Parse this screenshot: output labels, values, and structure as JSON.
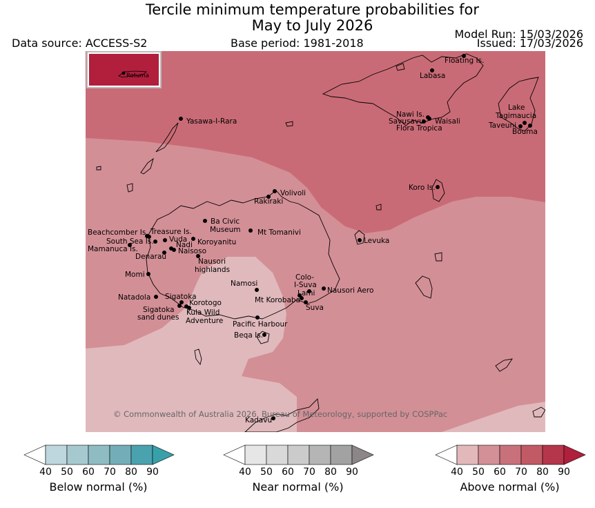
{
  "title_line1": "Tercile minimum temperature probabilities for",
  "title_line2": "May to July 2026",
  "data_source": "Data source: ACCESS-S2",
  "base_period": "Base period: 1981-2018",
  "model_run": "Model Run: 15/03/2026",
  "issued": "Issued: 17/03/2026",
  "inset_label": "Rotuma",
  "copyright": "© Commonwealth of Australia 2026, Bureau of Meteorology, supported by COSPPac",
  "places": [
    {
      "name": "Floating Is.",
      "lines": [
        "Floating Is."
      ]
    },
    {
      "name": "Labasa",
      "lines": [
        "Labasa"
      ]
    },
    {
      "name": "Yasawa-I-Rara",
      "lines": [
        "Yasawa-I-Rara"
      ]
    },
    {
      "name": "Nawi Is.",
      "lines": [
        "Nawi Is."
      ]
    },
    {
      "name": "Savusavu",
      "lines": [
        "Savusavu"
      ]
    },
    {
      "name": "Waisali",
      "lines": [
        "Waisali"
      ]
    },
    {
      "name": "Flora Tropica",
      "lines": [
        "Flora Tropica"
      ]
    },
    {
      "name": "Lake Tagimaucia",
      "lines": [
        "Lake",
        "Tagimaucia"
      ]
    },
    {
      "name": "Taveuni",
      "lines": [
        "Taveuni"
      ]
    },
    {
      "name": "Bouma",
      "lines": [
        "Bouma"
      ]
    },
    {
      "name": "Koro Is.",
      "lines": [
        "Koro Is."
      ]
    },
    {
      "name": "Volivoli",
      "lines": [
        "Volivoli"
      ]
    },
    {
      "name": "Rakiraki",
      "lines": [
        "Rakiraki"
      ]
    },
    {
      "name": "Ba Civic Museum",
      "lines": [
        "Ba Civic",
        "Museum"
      ]
    },
    {
      "name": "Mt Tomanivi",
      "lines": [
        "Mt Tomanivi"
      ]
    },
    {
      "name": "Levuka",
      "lines": [
        "Levuka"
      ]
    },
    {
      "name": "Beachcomber Is.",
      "lines": [
        "Beachcomber Is."
      ]
    },
    {
      "name": "Treasure Is.",
      "lines": [
        "Treasure Is."
      ]
    },
    {
      "name": "South Sea Is.",
      "lines": [
        "South Sea Is."
      ]
    },
    {
      "name": "Vuda",
      "lines": [
        "Vuda"
      ]
    },
    {
      "name": "Koroyanitu",
      "lines": [
        "Koroyanitu"
      ]
    },
    {
      "name": "Mamanuca Is.",
      "lines": [
        "Mamanuca Is."
      ]
    },
    {
      "name": "Nadi",
      "lines": [
        "Nadi"
      ]
    },
    {
      "name": "Naisoso",
      "lines": [
        "Naisoso"
      ]
    },
    {
      "name": "Denarau",
      "lines": [
        "Denarau"
      ]
    },
    {
      "name": "Nausori highlands",
      "lines": [
        "Nausori",
        "highlands"
      ]
    },
    {
      "name": "Momi",
      "lines": [
        "Momi"
      ]
    },
    {
      "name": "Namosi",
      "lines": [
        "Namosi"
      ]
    },
    {
      "name": "Colo-I-Suva",
      "lines": [
        "Colo-",
        "I-Suva"
      ]
    },
    {
      "name": "Nausori Aero",
      "lines": [
        "Nausori Aero"
      ]
    },
    {
      "name": "Lami",
      "lines": [
        "Lami"
      ]
    },
    {
      "name": "Mt Korobaba",
      "lines": [
        "Mt Korobaba"
      ]
    },
    {
      "name": "Suva",
      "lines": [
        "Suva"
      ]
    },
    {
      "name": "Natadola",
      "lines": [
        "Natadola"
      ]
    },
    {
      "name": "Sigatoka",
      "lines": [
        "Sigatoka"
      ]
    },
    {
      "name": "Korotogo",
      "lines": [
        "Korotogo"
      ]
    },
    {
      "name": "Sigatoka sand dunes",
      "lines": [
        "Sigatoka",
        "sand dunes"
      ]
    },
    {
      "name": "Kula Wild Adventure",
      "lines": [
        "Kula Wild",
        "Adventure"
      ]
    },
    {
      "name": "Pacific Harbour",
      "lines": [
        "Pacific Harbour"
      ]
    },
    {
      "name": "Beqa Is.",
      "lines": [
        "Beqa Is."
      ]
    },
    {
      "name": "Kadavu",
      "lines": [
        "Kadavu"
      ]
    }
  ],
  "colorbars": [
    {
      "label": "Below normal (%)",
      "ticks": [
        "40",
        "50",
        "60",
        "70",
        "80",
        "90"
      ],
      "colors": [
        "#ffffff",
        "#bed6dd",
        "#a6c9cf",
        "#8fbcc3",
        "#73aeb8",
        "#4aa2ae",
        "#38a0a9"
      ]
    },
    {
      "label": "Near normal (%)",
      "ticks": [
        "40",
        "50",
        "60",
        "70",
        "80",
        "90"
      ],
      "colors": [
        "#ffffff",
        "#e6e6e6",
        "#d9d9d9",
        "#cbcbcb",
        "#b5b5b5",
        "#a2a2a2",
        "#8c8686"
      ]
    },
    {
      "label": "Above normal (%)",
      "ticks": [
        "40",
        "50",
        "60",
        "70",
        "80",
        "90"
      ],
      "colors": [
        "#ffffff",
        "#e2b8bb",
        "#d49097",
        "#c8717a",
        "#c25a66",
        "#b5354a",
        "#b01f3c"
      ]
    }
  ],
  "map_colors": {
    "above_40_50": "#e0b9bc",
    "above_50_60": "#d38f96",
    "above_60_70": "#c96b76",
    "inset_above_80_90": "#b11f3c"
  }
}
